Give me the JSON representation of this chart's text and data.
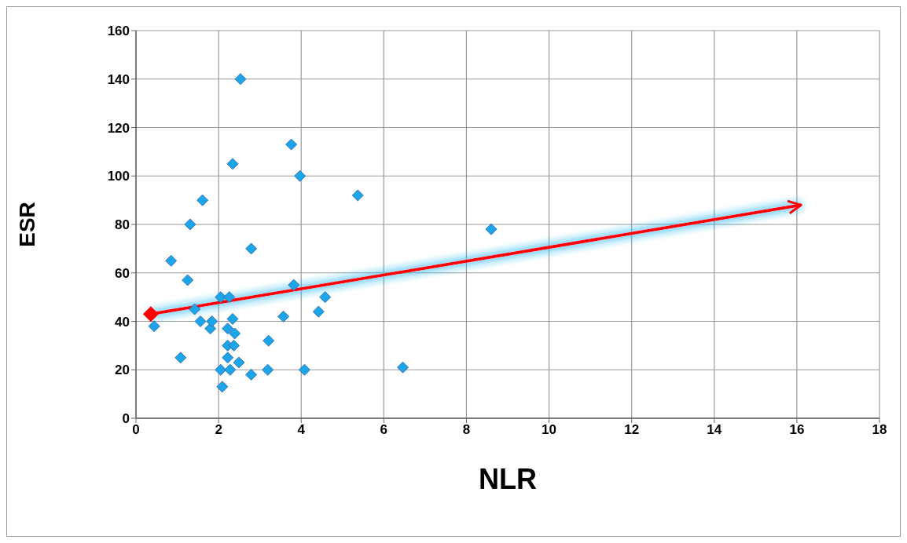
{
  "chart_data": {
    "type": "scatter",
    "xlabel": "NLR",
    "ylabel": "ESR",
    "xlim": [
      0,
      18
    ],
    "ylim": [
      0,
      160
    ],
    "xticks": [
      0,
      2,
      4,
      6,
      8,
      10,
      12,
      14,
      16,
      18
    ],
    "yticks": [
      0,
      20,
      40,
      60,
      80,
      100,
      120,
      140,
      160
    ],
    "grid": true,
    "marker": "diamond",
    "series": [
      {
        "color": "#1aa6e8",
        "x": [
          0.44,
          0.85,
          1.08,
          1.25,
          1.31,
          1.61,
          1.42,
          1.56,
          1.8,
          1.84,
          2.05,
          2.26,
          2.34,
          2.22,
          2.39,
          2.22,
          2.37,
          2.22,
          2.49,
          2.05,
          2.28,
          2.09,
          2.79,
          3.19,
          3.21,
          3.57,
          3.82,
          2.79,
          4.08,
          4.42,
          4.58,
          2.53,
          3.76,
          2.34,
          3.97,
          5.37,
          8.6,
          6.46
        ],
        "values": [
          38,
          65,
          25,
          57,
          80,
          90,
          45,
          40,
          37,
          40,
          50,
          50,
          41,
          37,
          35,
          30,
          30,
          25,
          23,
          20,
          20,
          13,
          18,
          20,
          32,
          42,
          55,
          70,
          20,
          44,
          50,
          140,
          113,
          105,
          100,
          92,
          78,
          21
        ]
      },
      {
        "type": "line",
        "color": "#ff0000",
        "x": [
          0.36,
          16.1
        ],
        "values": [
          43,
          88
        ]
      }
    ]
  }
}
